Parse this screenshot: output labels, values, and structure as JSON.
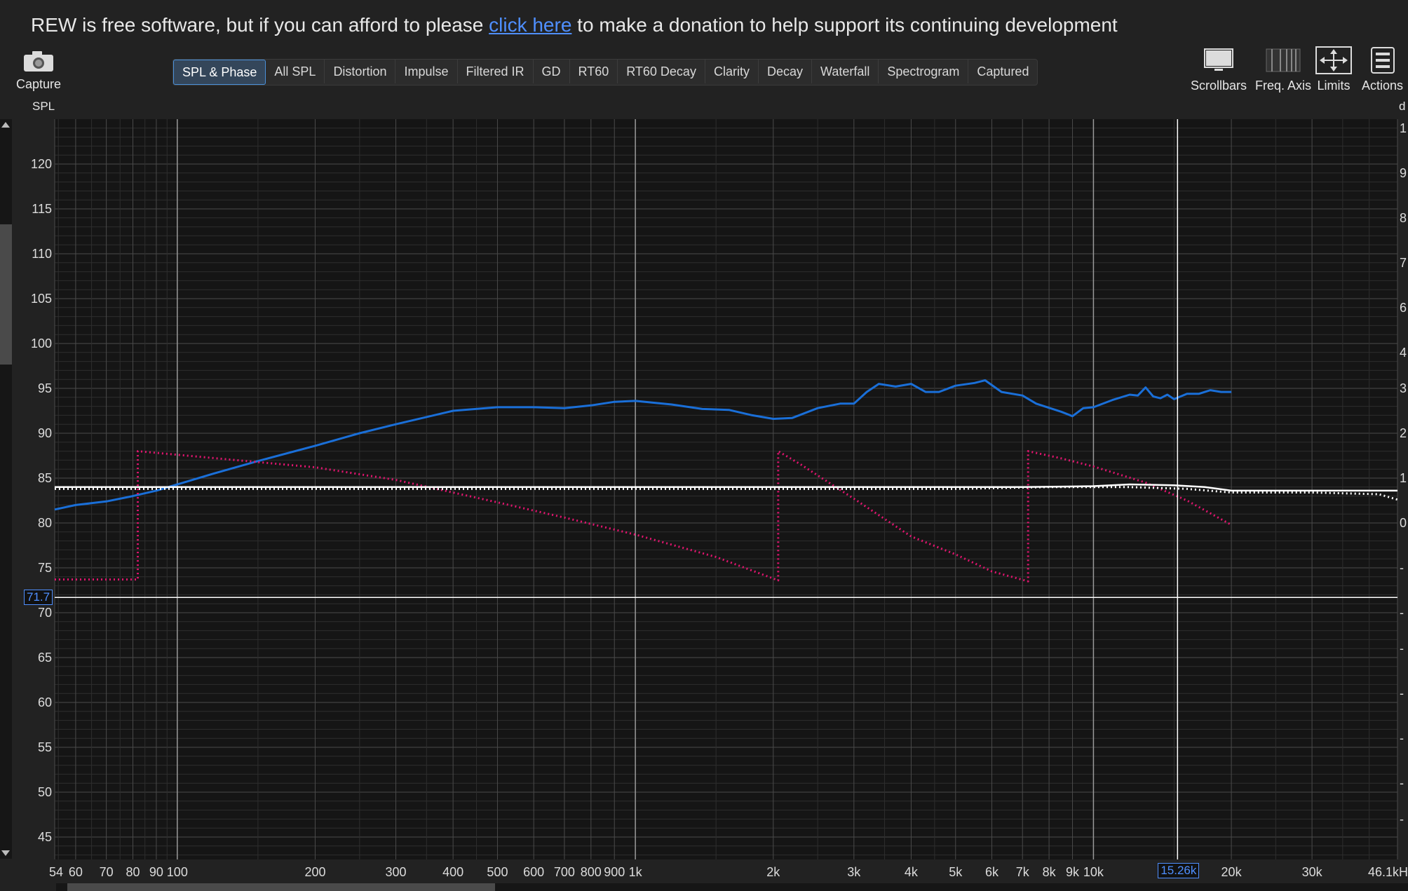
{
  "banner": {
    "prefix": "REW is free software, but if you can afford to please ",
    "link": "click here",
    "suffix": " to make a donation to help support its continuing development"
  },
  "capture": {
    "label": "Capture",
    "icon": "camera-icon"
  },
  "tabs": [
    {
      "label": "SPL & Phase",
      "active": true
    },
    {
      "label": "All SPL"
    },
    {
      "label": "Distortion"
    },
    {
      "label": "Impulse"
    },
    {
      "label": "Filtered IR"
    },
    {
      "label": "GD"
    },
    {
      "label": "RT60"
    },
    {
      "label": "RT60 Decay"
    },
    {
      "label": "Clarity"
    },
    {
      "label": "Decay"
    },
    {
      "label": "Waterfall"
    },
    {
      "label": "Spectrogram"
    },
    {
      "label": "Captured"
    }
  ],
  "tools": {
    "scrollbars": {
      "label": "Scrollbars",
      "icon": "monitor-icon"
    },
    "freq_axis": {
      "label": "Freq. Axis",
      "icon": "freq-axis-icon"
    },
    "limits": {
      "label": "Limits",
      "icon": "limits-arrows-icon"
    },
    "actions": {
      "label": "Actions",
      "icon": "actions-menu-icon"
    }
  },
  "axis": {
    "y_label": "SPL",
    "right_unit": "d",
    "cursor_y": "71.7",
    "cursor_x": "15.26k"
  },
  "colors": {
    "background": "#151515",
    "grid_major": "#4a4a4a",
    "grid_minor": "#2e2e2e",
    "spl_trace": "#1a6fd8",
    "phase_trace": "#e0156e",
    "target_trace": "#ffffff",
    "accent": "#4a90d9"
  },
  "chart_data": {
    "type": "line",
    "title": "",
    "xlabel": "",
    "ylabel": "SPL",
    "x_scale": "log",
    "xlim": [
      54,
      46100
    ],
    "ylim": [
      42.5,
      125
    ],
    "grid": true,
    "y_ticks": [
      45,
      50,
      55,
      60,
      65,
      70,
      75,
      80,
      85,
      90,
      95,
      100,
      105,
      110,
      115,
      120
    ],
    "x_tick_labels": [
      {
        "v": 54,
        "t": "54"
      },
      {
        "v": 60,
        "t": "60"
      },
      {
        "v": 70,
        "t": "70"
      },
      {
        "v": 80,
        "t": "80"
      },
      {
        "v": 90,
        "t": "90"
      },
      {
        "v": 100,
        "t": "100"
      },
      {
        "v": 200,
        "t": "200"
      },
      {
        "v": 300,
        "t": "300"
      },
      {
        "v": 400,
        "t": "400"
      },
      {
        "v": 500,
        "t": "500"
      },
      {
        "v": 600,
        "t": "600"
      },
      {
        "v": 700,
        "t": "700"
      },
      {
        "v": 800,
        "t": "800"
      },
      {
        "v": 900,
        "t": "900"
      },
      {
        "v": 1000,
        "t": "1k"
      },
      {
        "v": 2000,
        "t": "2k"
      },
      {
        "v": 3000,
        "t": "3k"
      },
      {
        "v": 4000,
        "t": "4k"
      },
      {
        "v": 5000,
        "t": "5k"
      },
      {
        "v": 6000,
        "t": "6k"
      },
      {
        "v": 7000,
        "t": "7k"
      },
      {
        "v": 8000,
        "t": "8k"
      },
      {
        "v": 9000,
        "t": "9k"
      },
      {
        "v": 10000,
        "t": "10k"
      },
      {
        "v": 20000,
        "t": "20k"
      },
      {
        "v": 30000,
        "t": "30k"
      },
      {
        "v": 46100,
        "t": "46.1kH"
      }
    ],
    "right_ticks": [
      {
        "y": 124,
        "t": "1"
      },
      {
        "y": 119,
        "t": "9"
      },
      {
        "y": 114,
        "t": "8"
      },
      {
        "y": 109,
        "t": "7"
      },
      {
        "y": 104,
        "t": "6"
      },
      {
        "y": 99,
        "t": "4"
      },
      {
        "y": 95,
        "t": "3"
      },
      {
        "y": 90,
        "t": "2"
      },
      {
        "y": 85,
        "t": "1"
      },
      {
        "y": 80,
        "t": "0"
      },
      {
        "y": 75,
        "t": "-"
      },
      {
        "y": 70,
        "t": "-"
      },
      {
        "y": 66,
        "t": "-"
      },
      {
        "y": 61,
        "t": "-"
      },
      {
        "y": 56,
        "t": "-"
      },
      {
        "y": 51,
        "t": "-"
      },
      {
        "y": 47,
        "t": "-"
      }
    ],
    "cursor": {
      "x": 15260,
      "y": 71.7
    },
    "series": [
      {
        "color": "#1a6fd8",
        "style": "solid",
        "points": [
          [
            54,
            81.5
          ],
          [
            60,
            82
          ],
          [
            70,
            82.4
          ],
          [
            80,
            83
          ],
          [
            90,
            83.6
          ],
          [
            100,
            84.3
          ],
          [
            120,
            85.5
          ],
          [
            150,
            86.9
          ],
          [
            200,
            88.6
          ],
          [
            250,
            90
          ],
          [
            300,
            91
          ],
          [
            400,
            92.5
          ],
          [
            500,
            92.9
          ],
          [
            600,
            92.9
          ],
          [
            700,
            92.8
          ],
          [
            800,
            93.1
          ],
          [
            900,
            93.5
          ],
          [
            1000,
            93.6
          ],
          [
            1200,
            93.2
          ],
          [
            1400,
            92.7
          ],
          [
            1600,
            92.6
          ],
          [
            1800,
            92
          ],
          [
            2000,
            91.6
          ],
          [
            2200,
            91.7
          ],
          [
            2500,
            92.8
          ],
          [
            2800,
            93.3
          ],
          [
            3000,
            93.3
          ],
          [
            3200,
            94.6
          ],
          [
            3400,
            95.5
          ],
          [
            3700,
            95.2
          ],
          [
            4000,
            95.5
          ],
          [
            4300,
            94.6
          ],
          [
            4600,
            94.6
          ],
          [
            5000,
            95.3
          ],
          [
            5500,
            95.6
          ],
          [
            5800,
            95.9
          ],
          [
            6300,
            94.6
          ],
          [
            7000,
            94.2
          ],
          [
            7500,
            93.3
          ],
          [
            8500,
            92.4
          ],
          [
            9000,
            91.9
          ],
          [
            9500,
            92.8
          ],
          [
            10000,
            92.9
          ],
          [
            11000,
            93.7
          ],
          [
            12000,
            94.3
          ],
          [
            12500,
            94.2
          ],
          [
            13000,
            95.1
          ],
          [
            13500,
            94.1
          ],
          [
            14000,
            93.9
          ],
          [
            14500,
            94.3
          ],
          [
            15000,
            93.8
          ],
          [
            16000,
            94.4
          ],
          [
            17000,
            94.4
          ],
          [
            18000,
            94.8
          ],
          [
            19000,
            94.6
          ],
          [
            20000,
            94.6
          ]
        ]
      },
      {
        "color": "#e0156e",
        "style": "dotted",
        "points": [
          [
            54,
            73.7
          ],
          [
            82,
            73.7
          ],
          [
            82,
            88
          ],
          [
            100,
            87.6
          ],
          [
            200,
            86.2
          ],
          [
            300,
            84.8
          ],
          [
            500,
            82.3
          ],
          [
            700,
            80.6
          ],
          [
            1000,
            78.7
          ],
          [
            1500,
            76.2
          ],
          [
            2050,
            73.6
          ],
          [
            2050,
            88
          ],
          [
            2300,
            86.5
          ],
          [
            3000,
            82.7
          ],
          [
            4000,
            78.5
          ],
          [
            5000,
            76.5
          ],
          [
            6000,
            74.6
          ],
          [
            7200,
            73.5
          ],
          [
            7200,
            88
          ],
          [
            8500,
            87.2
          ],
          [
            10000,
            86.3
          ],
          [
            13000,
            84.5
          ],
          [
            16000,
            82.5
          ],
          [
            20000,
            79.8
          ]
        ]
      },
      {
        "color": "#ffffff",
        "style": "solid",
        "points": [
          [
            54,
            84
          ],
          [
            2000,
            84
          ],
          [
            7000,
            84
          ],
          [
            10000,
            84.1
          ],
          [
            12000,
            84.3
          ],
          [
            15000,
            84.2
          ],
          [
            17500,
            84
          ],
          [
            20000,
            83.6
          ],
          [
            30000,
            83.6
          ],
          [
            46100,
            83.6
          ]
        ]
      },
      {
        "color": "#ffffff",
        "style": "dotted",
        "points": [
          [
            54,
            83.8
          ],
          [
            5000,
            83.8
          ],
          [
            8000,
            84
          ],
          [
            12000,
            84
          ],
          [
            16000,
            83.8
          ],
          [
            20000,
            83.4
          ],
          [
            30000,
            83.4
          ],
          [
            42000,
            83.2
          ],
          [
            46100,
            82.6
          ]
        ]
      }
    ]
  }
}
